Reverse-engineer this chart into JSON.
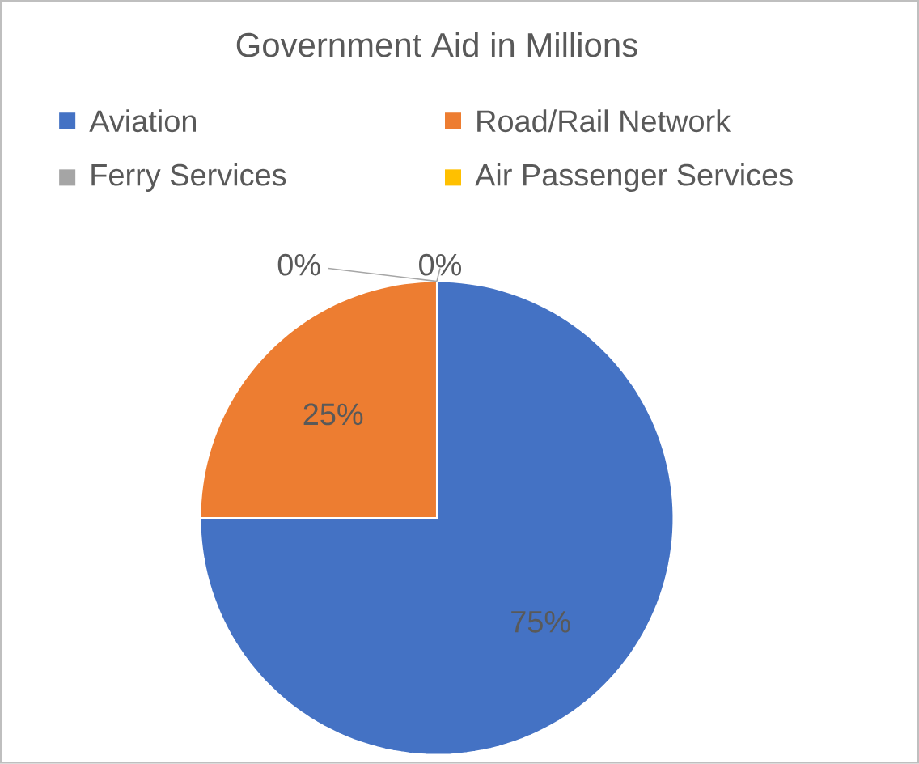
{
  "chart_data": {
    "type": "pie",
    "title": "Government Aid in Millions",
    "categories": [
      "Aviation",
      "Road/Rail Network",
      "Ferry Services",
      "Air Passenger Services"
    ],
    "values": [
      75,
      25,
      0,
      0
    ],
    "colors": [
      "#4472c4",
      "#ed7d31",
      "#a5a5a5",
      "#ffc000"
    ],
    "value_labels": [
      "75%",
      "25%",
      "0%",
      "0%"
    ],
    "legend": "top"
  }
}
